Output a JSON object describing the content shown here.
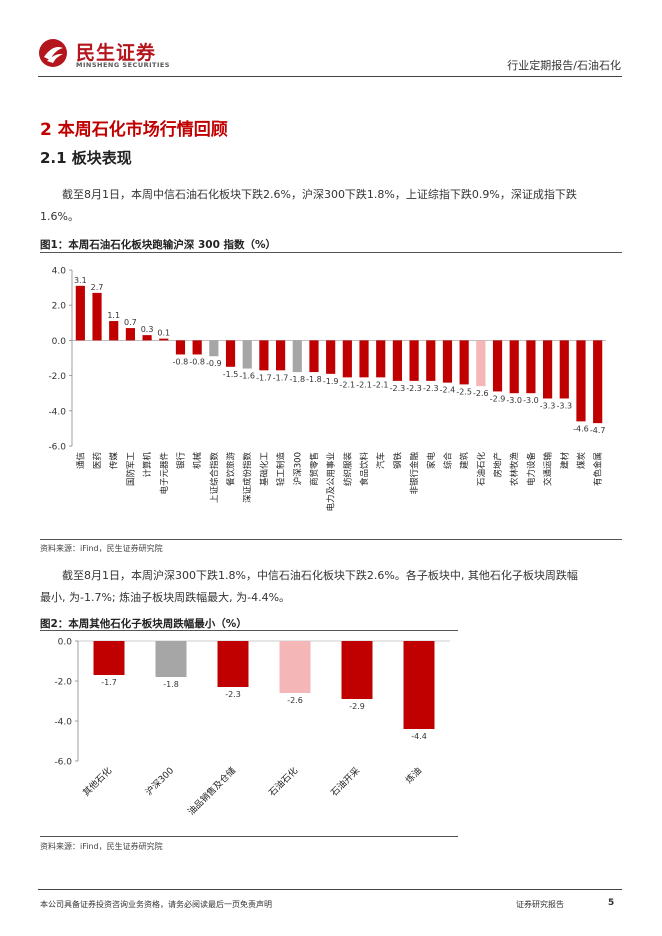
{
  "header": {
    "logo_cn": "民生证券",
    "logo_en": "MINSHENG SECURITIES",
    "doc_type": "行业定期报告/石油石化"
  },
  "section": {
    "h1": "2 本周石化市场行情回顾",
    "h2": "2.1 板块表现",
    "para1": "截至8月1日，本周中信石油石化板块下跌2.6%，沪深300下跌1.8%，上证综指下跌0.9%，深证成指下跌1.6%。",
    "para2": "截至8月1日，本周沪深300下跌1.8%，中信石油石化板块下跌2.6%。各子板块中, 其他石化子板块周跌幅最小, 为-1.7%; 炼油子板块周跌幅最大, 为-4.4%。"
  },
  "fig1": {
    "title": "图1：本周石油石化板块跑输沪深 300 指数（%）",
    "source": "资料来源：iFind，民生证券研究院"
  },
  "fig2": {
    "title": "图2：本周其他石化子板块周跌幅最小（%）",
    "source": "资料来源：iFind，民生证券研究院"
  },
  "colors": {
    "brand": "#b3161c",
    "bar_red": "#c00000",
    "bar_gray": "#a6a6a6",
    "bar_pink": "#f4b6b6"
  },
  "chart_data": [
    {
      "type": "bar",
      "ylim": [
        -6.0,
        4.0
      ],
      "yticks": [
        "4.0",
        "2.0",
        "0.0",
        "-2.0",
        "-4.0",
        "-6.0"
      ],
      "categories": [
        "通信",
        "医药",
        "传媒",
        "国防军工",
        "计算机",
        "电子元器件",
        "银行",
        "机械",
        "上证综合指数",
        "餐饮旅游",
        "深证成份指数",
        "基础化工",
        "轻工制造",
        "沪深300",
        "商贸零售",
        "电力及公用事业",
        "纺织服装",
        "食品饮料",
        "汽车",
        "钢铁",
        "非银行金融",
        "家电",
        "综合",
        "建筑",
        "石油石化",
        "房地产",
        "农林牧渔",
        "电力设备",
        "交通运输",
        "建材",
        "煤炭",
        "有色金属"
      ],
      "values": [
        3.1,
        2.7,
        1.1,
        0.7,
        0.3,
        0.1,
        -0.8,
        -0.8,
        -0.9,
        -1.5,
        -1.6,
        -1.7,
        -1.7,
        -1.8,
        -1.8,
        -1.9,
        -2.1,
        -2.1,
        -2.1,
        -2.3,
        -2.3,
        -2.3,
        -2.4,
        -2.5,
        -2.6,
        -2.9,
        -3.0,
        -3.0,
        -3.3,
        -3.3,
        -4.6,
        -4.7
      ],
      "labels": [
        "3.1",
        "2.7",
        "1.1",
        "0.7",
        "0.3",
        "0.1",
        "-0.8",
        "-0.8",
        "-0.9",
        "-1.5",
        "-1.6",
        "-1.7",
        "-1.7",
        "-1.8",
        "-1.8",
        "-1.9",
        "-2.1",
        "-2.1",
        "-2.1",
        "-2.3",
        "-2.3",
        "-2.3",
        "-2.4",
        "-2.5",
        "-2.6",
        "-2.9",
        "-3.0",
        "-3.0",
        "-3.3",
        "-3.3",
        "-4.6",
        "-4.7"
      ],
      "colors": [
        "red",
        "red",
        "red",
        "red",
        "red",
        "red",
        "red",
        "red",
        "gray",
        "red",
        "gray",
        "red",
        "red",
        "gray",
        "red",
        "red",
        "red",
        "red",
        "red",
        "red",
        "red",
        "red",
        "red",
        "red",
        "pink",
        "red",
        "red",
        "red",
        "red",
        "red",
        "red",
        "red"
      ]
    },
    {
      "type": "bar",
      "ylim": [
        -6.0,
        0.0
      ],
      "yticks": [
        "0.0",
        "-2.0",
        "-4.0",
        "-6.0"
      ],
      "categories": [
        "其他石化",
        "沪深300",
        "油品销售及仓储",
        "石油石化",
        "石油开采",
        "炼油"
      ],
      "values": [
        -1.7,
        -1.8,
        -2.3,
        -2.6,
        -2.9,
        -4.4
      ],
      "labels": [
        "-1.7",
        "-1.8",
        "-2.3",
        "-2.6",
        "-2.9",
        "-4.4"
      ],
      "colors": [
        "red",
        "gray",
        "red",
        "pink",
        "red",
        "red"
      ]
    }
  ],
  "footer": {
    "disclaimer": "本公司具备证券投资咨询业务资格，请务必阅读最后一页免责声明",
    "report_type": "证券研究报告",
    "page": "5"
  }
}
